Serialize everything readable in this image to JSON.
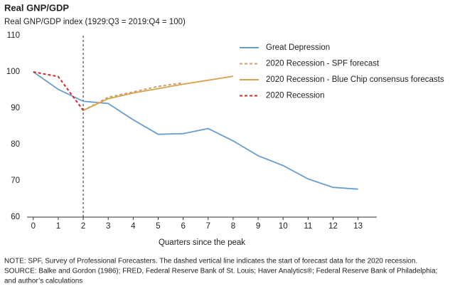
{
  "chart_data": {
    "type": "line",
    "title": "Real GNP/GDP",
    "subtitle": "Real GNP/GDP index (1929:Q3 = 2019:Q4 = 100)",
    "x_label": "Quarters since the peak",
    "x": [
      0,
      1,
      2,
      3,
      4,
      5,
      6,
      7,
      8,
      9,
      10,
      11,
      12,
      13
    ],
    "xlim": [
      -0.25,
      13.75
    ],
    "xticks": [
      0,
      1,
      2,
      3,
      4,
      5,
      6,
      7,
      8,
      9,
      10,
      11,
      12,
      13
    ],
    "ylim": [
      60,
      110
    ],
    "yticks": [
      60,
      70,
      80,
      90,
      100,
      110
    ],
    "grid": false,
    "legend": "upper right",
    "forecast_start_x": 2,
    "series": [
      {
        "name": "Great Depression",
        "color": "#6a9ecb",
        "style": "solid",
        "values": [
          100,
          95.2,
          91.9,
          91.3,
          86.8,
          82.8,
          83.0,
          84.4,
          81.0,
          76.9,
          74.2,
          70.5,
          68.2,
          67.7
        ]
      },
      {
        "name": "2020 Recession - SPF forecast",
        "color": "#c9a36a",
        "style": "dashed",
        "values": [
          null,
          null,
          89.4,
          93.0,
          94.5,
          96.0,
          97.0,
          null,
          null,
          null,
          null,
          null,
          null,
          null
        ]
      },
      {
        "name": "2020 Recession - Blue Chip consensus forecasts",
        "color": "#d9a04e",
        "style": "solid",
        "values": [
          null,
          null,
          89.4,
          92.6,
          94.2,
          95.4,
          96.6,
          97.7,
          98.8,
          null,
          null,
          null,
          null,
          null
        ]
      },
      {
        "name": "2020 Recession",
        "color": "#d42a2a",
        "style": "dashed",
        "values": [
          100,
          98.7,
          89.4,
          null,
          null,
          null,
          null,
          null,
          null,
          null,
          null,
          null,
          null,
          null
        ]
      }
    ],
    "notes": [
      "NOTE: SPF, Survey of Professional Forecasters. The dashed vertical line indicates the start of forecast data for the 2020 recession.",
      "SOURCE: Balke and Gordon (1986); FRED, Federal Reserve Bank of St. Louis; Haver Analytics®; Federal Reserve Bank of Philadelphia;",
      "and author’s calculations"
    ]
  }
}
